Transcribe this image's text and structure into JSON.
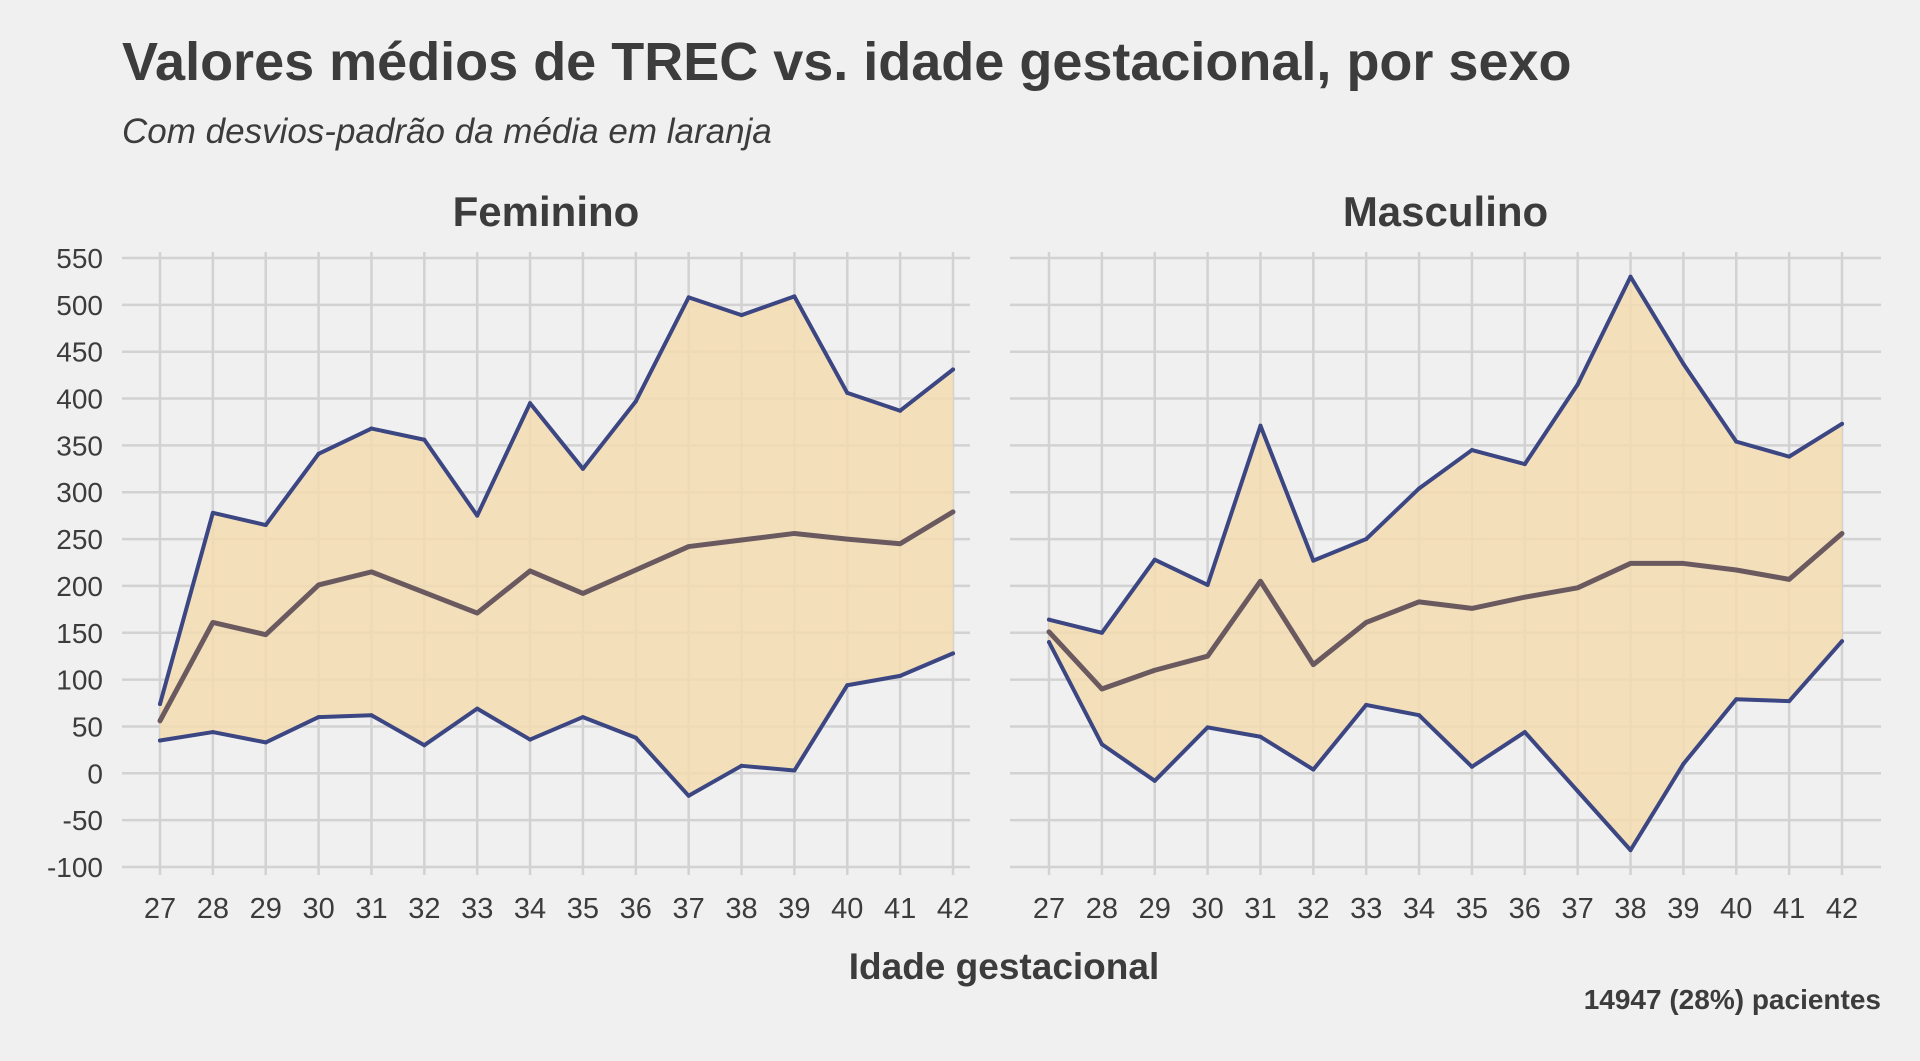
{
  "chart_data": {
    "type": "area",
    "title": "Valores médios de TREC vs. idade gestacional, por sexo",
    "subtitle": "Com desvios-padrão da média em laranja",
    "xlabel": "Idade gestacional",
    "ylabel": "",
    "caption": "14947 (28%) pacientes",
    "x": [
      27,
      28,
      29,
      30,
      31,
      32,
      33,
      34,
      35,
      36,
      37,
      38,
      39,
      40,
      41,
      42
    ],
    "ylim": [
      -100,
      550
    ],
    "yticks": [
      -100,
      -50,
      0,
      50,
      100,
      150,
      200,
      250,
      300,
      350,
      400,
      450,
      500,
      550
    ],
    "grid": true,
    "colors": {
      "band_fill": "#f4dcb1",
      "bound_line": "#3b4682",
      "mean_line": "#6a5a5f",
      "grid": "#d2d2d2",
      "background": "#f0f0f0",
      "text": "#3c3c3c"
    },
    "panels": [
      {
        "name": "Feminino",
        "mean": [
          56,
          161,
          148,
          201,
          215,
          193,
          171,
          216,
          192,
          217,
          242,
          249,
          256,
          250,
          245,
          279
        ],
        "upper": [
          74,
          278,
          265,
          341,
          368,
          356,
          275,
          395,
          325,
          397,
          508,
          489,
          509,
          406,
          387,
          431
        ],
        "lower": [
          35,
          44,
          33,
          60,
          62,
          30,
          69,
          36,
          60,
          38,
          -24,
          8,
          3,
          94,
          104,
          128
        ]
      },
      {
        "name": "Masculino",
        "mean": [
          151,
          90,
          110,
          125,
          205,
          116,
          161,
          183,
          176,
          188,
          198,
          224,
          224,
          217,
          207,
          256
        ],
        "upper": [
          164,
          150,
          228,
          201,
          371,
          227,
          250,
          304,
          345,
          330,
          415,
          530,
          437,
          354,
          338,
          373
        ],
        "lower": [
          140,
          31,
          -8,
          49,
          39,
          4,
          73,
          62,
          7,
          44,
          -19,
          -82,
          10,
          79,
          77,
          141
        ]
      }
    ]
  }
}
